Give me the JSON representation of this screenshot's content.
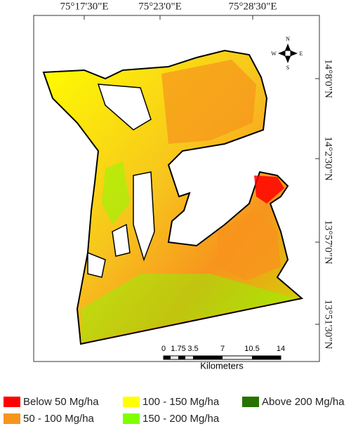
{
  "map": {
    "top_labels": [
      "75°17'30\"E",
      "75°23'0\"E",
      "75°28'30\"E"
    ],
    "right_labels": [
      "14°8'0\"N",
      "14°2'30\"N",
      "13°57'0\"N",
      "13°51'30\"N"
    ],
    "compass": {
      "n": "N",
      "s": "S",
      "e": "E",
      "w": "W"
    },
    "scale": {
      "ticks": [
        "0",
        "1.75",
        "3.5",
        "7",
        "10.5",
        "14"
      ],
      "unit": "Kilometers"
    }
  },
  "legend": [
    {
      "label": "Below 50 Mg/ha",
      "color": "#ff0000"
    },
    {
      "label": "50 - 100 Mg/ha",
      "color": "#f7941d"
    },
    {
      "label": "100 - 150 Mg/ha",
      "color": "#ffff00"
    },
    {
      "label": "150 - 200 Mg/ha",
      "color": "#80ff00"
    },
    {
      "label": "Above 200 Mg/ha",
      "color": "#267300"
    }
  ]
}
